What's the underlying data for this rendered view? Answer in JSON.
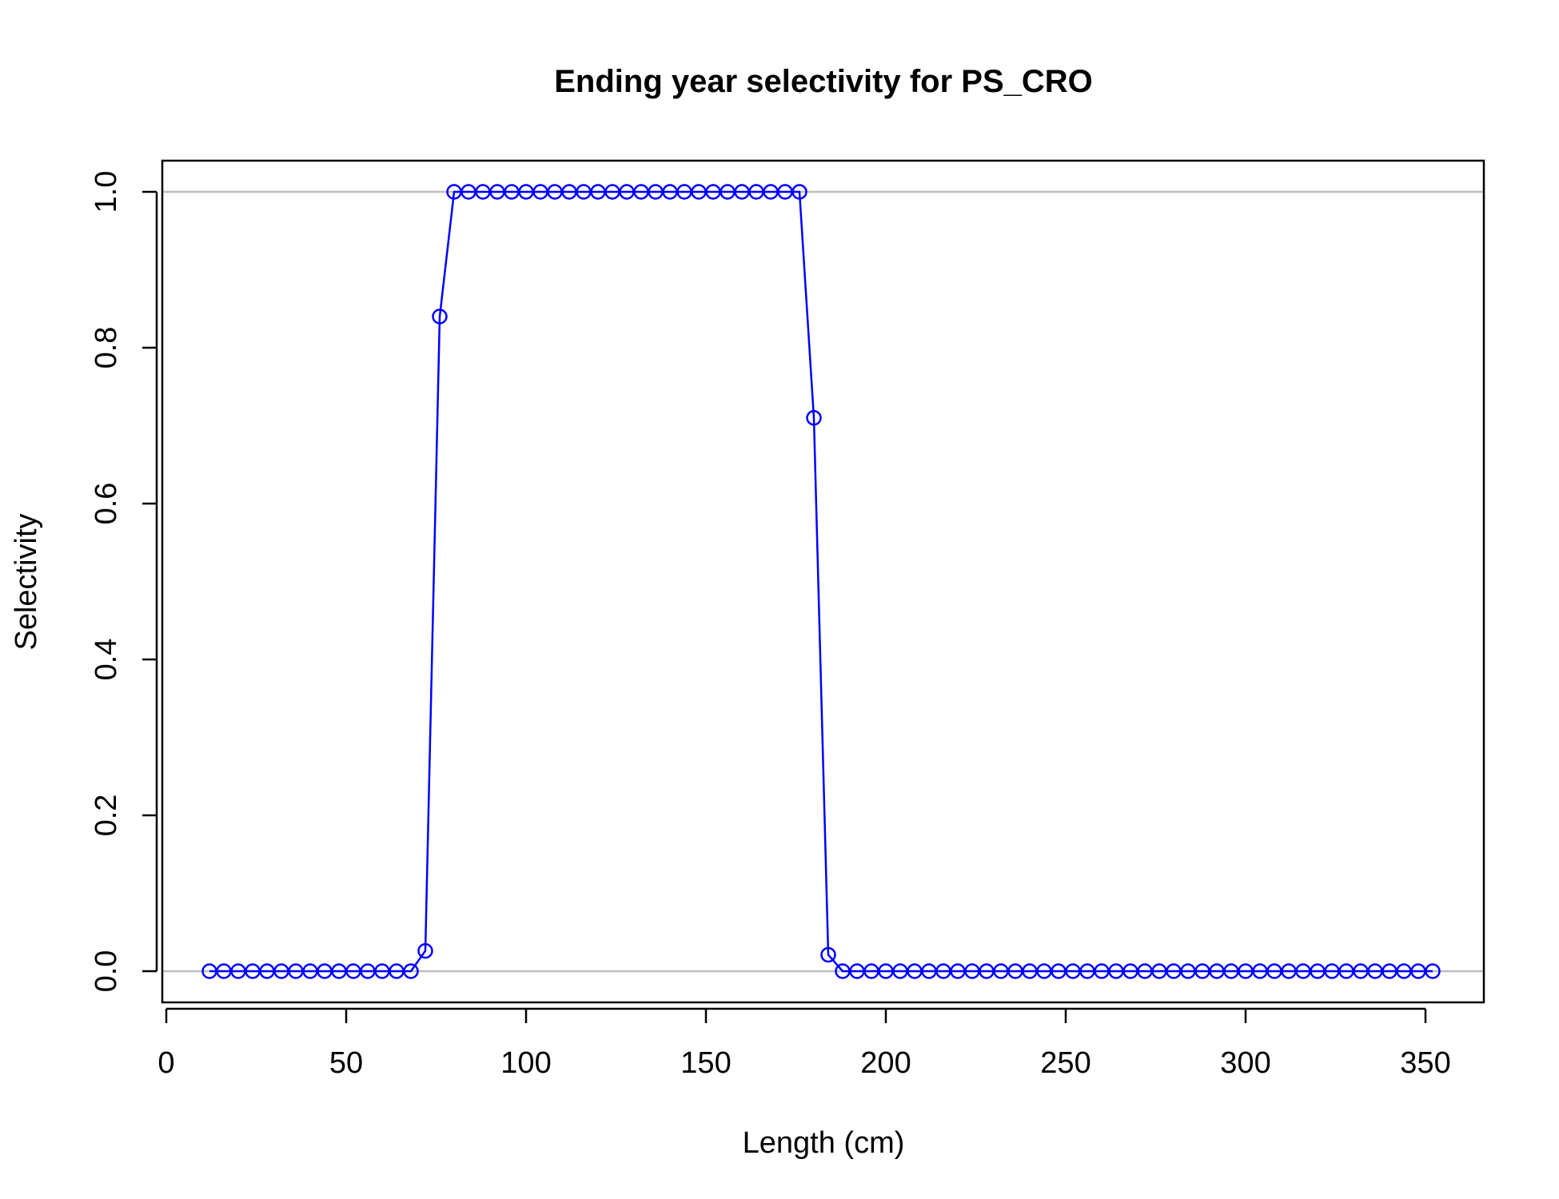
{
  "chart_data": {
    "type": "line",
    "title": "Ending year selectivity for PS_CRO",
    "xlabel": "Length (cm)",
    "ylabel": "Selectivity",
    "xlim": [
      0,
      355
    ],
    "ylim": [
      0,
      1
    ],
    "x_ticks": [
      "0",
      "50",
      "100",
      "150",
      "200",
      "250",
      "300",
      "350"
    ],
    "y_ticks": [
      "0.0",
      "0.2",
      "0.4",
      "0.6",
      "0.8",
      "1.0"
    ],
    "reference_lines_y": [
      0,
      1
    ],
    "grid": false,
    "colors": {
      "series": "#0000ff",
      "reference": "#bebebe",
      "axis": "#000000"
    },
    "series": [
      {
        "x": [
          12,
          16,
          20,
          24,
          28,
          32,
          36,
          40,
          44,
          48,
          52,
          56,
          60,
          64,
          68,
          72,
          76,
          80,
          84,
          88,
          92,
          96,
          100,
          104,
          108,
          112,
          116,
          120,
          124,
          128,
          132,
          136,
          140,
          144,
          148,
          152,
          156,
          160,
          164,
          168,
          172,
          176,
          180,
          184,
          188,
          192,
          196,
          200,
          204,
          208,
          212,
          216,
          220,
          224,
          228,
          232,
          236,
          240,
          244,
          248,
          252,
          256,
          260,
          264,
          268,
          272,
          276,
          280,
          284,
          288,
          292,
          296,
          300,
          304,
          308,
          312,
          316,
          320,
          324,
          328,
          332,
          336,
          340,
          344,
          348,
          352
        ],
        "y": [
          0,
          0,
          0,
          0,
          0,
          0,
          0,
          0,
          0,
          0,
          0,
          0,
          0,
          0,
          0,
          0.026,
          0.84,
          1,
          1,
          1,
          1,
          1,
          1,
          1,
          1,
          1,
          1,
          1,
          1,
          1,
          1,
          1,
          1,
          1,
          1,
          1,
          1,
          1,
          1,
          1,
          1,
          1,
          0.71,
          0.021,
          0,
          0,
          0,
          0,
          0,
          0,
          0,
          0,
          0,
          0,
          0,
          0,
          0,
          0,
          0,
          0,
          0,
          0,
          0,
          0,
          0,
          0,
          0,
          0,
          0,
          0,
          0,
          0,
          0,
          0,
          0,
          0,
          0,
          0,
          0,
          0,
          0,
          0,
          0,
          0,
          0,
          0
        ]
      }
    ]
  }
}
